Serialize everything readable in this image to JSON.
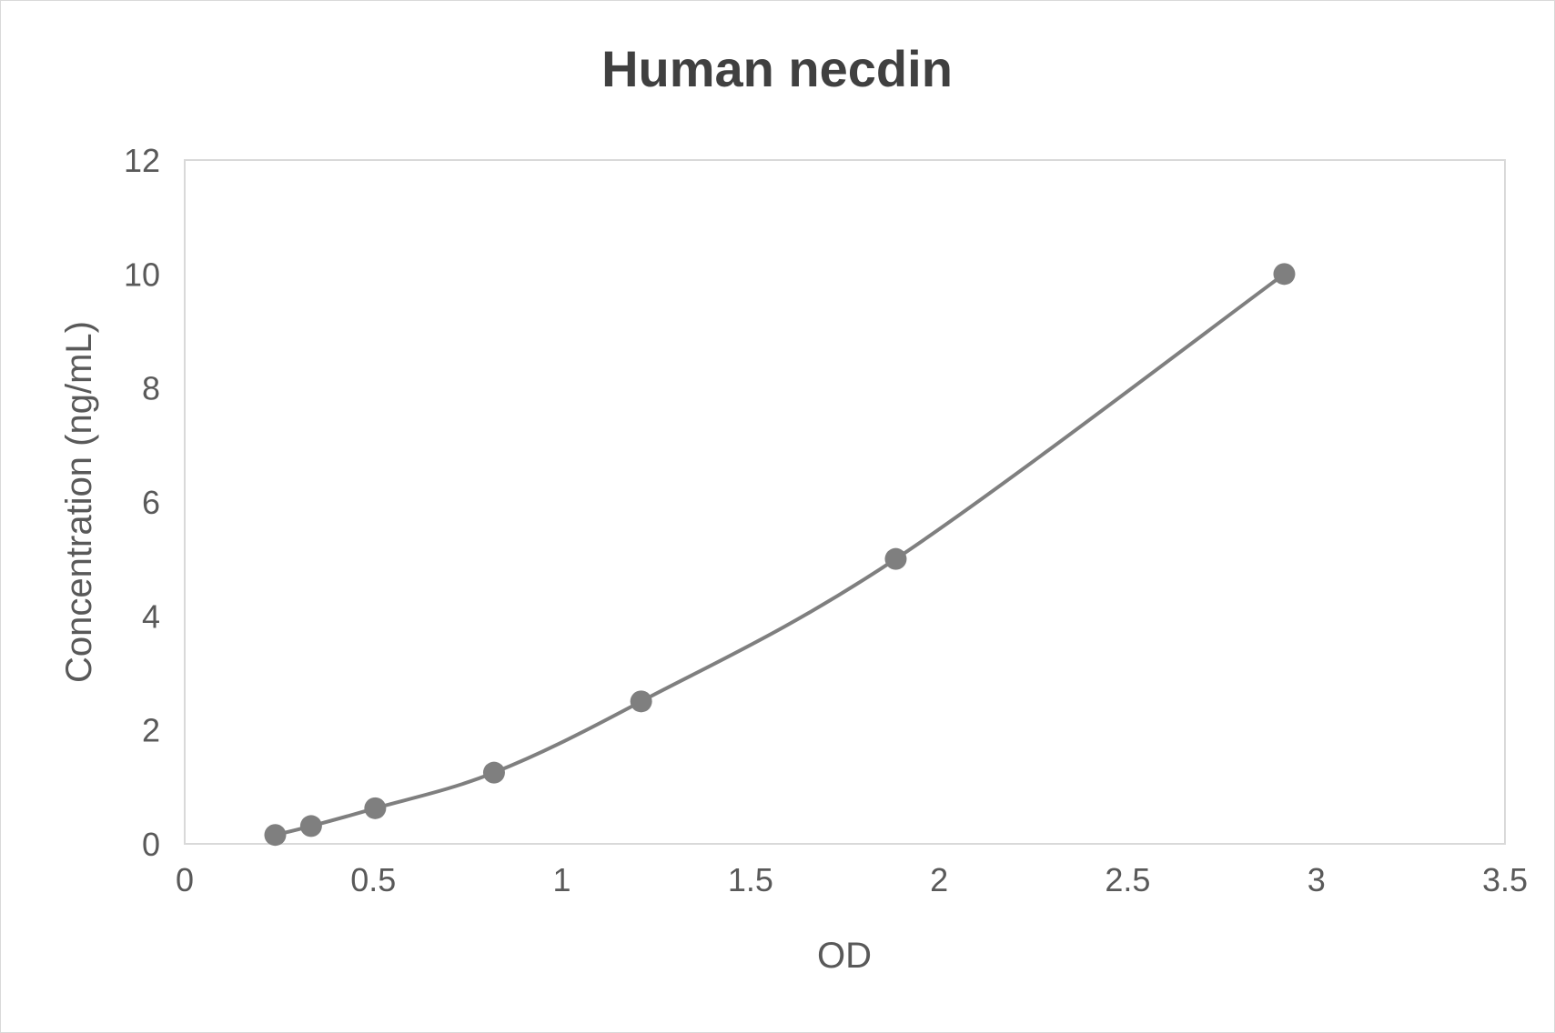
{
  "chart_data": {
    "type": "scatter",
    "title": "Human necdin",
    "xlabel": "OD",
    "ylabel": "Concentration (ng/mL)",
    "xlim": [
      0,
      3.5
    ],
    "ylim": [
      0,
      12
    ],
    "x_ticks": [
      "0",
      "0.5",
      "1",
      "1.5",
      "2",
      "2.5",
      "3",
      "3.5"
    ],
    "y_ticks": [
      "0",
      "2",
      "4",
      "6",
      "8",
      "10",
      "12"
    ],
    "grid": false,
    "legend": "none",
    "smoothed_line": true,
    "series": [
      {
        "color": "#7f7f7f",
        "points": [
          {
            "x": 0.24,
            "y": 0.156
          },
          {
            "x": 0.335,
            "y": 0.3125
          },
          {
            "x": 0.505,
            "y": 0.625
          },
          {
            "x": 0.82,
            "y": 1.25
          },
          {
            "x": 1.21,
            "y": 2.5
          },
          {
            "x": 1.885,
            "y": 5
          },
          {
            "x": 2.915,
            "y": 10
          }
        ]
      }
    ]
  }
}
